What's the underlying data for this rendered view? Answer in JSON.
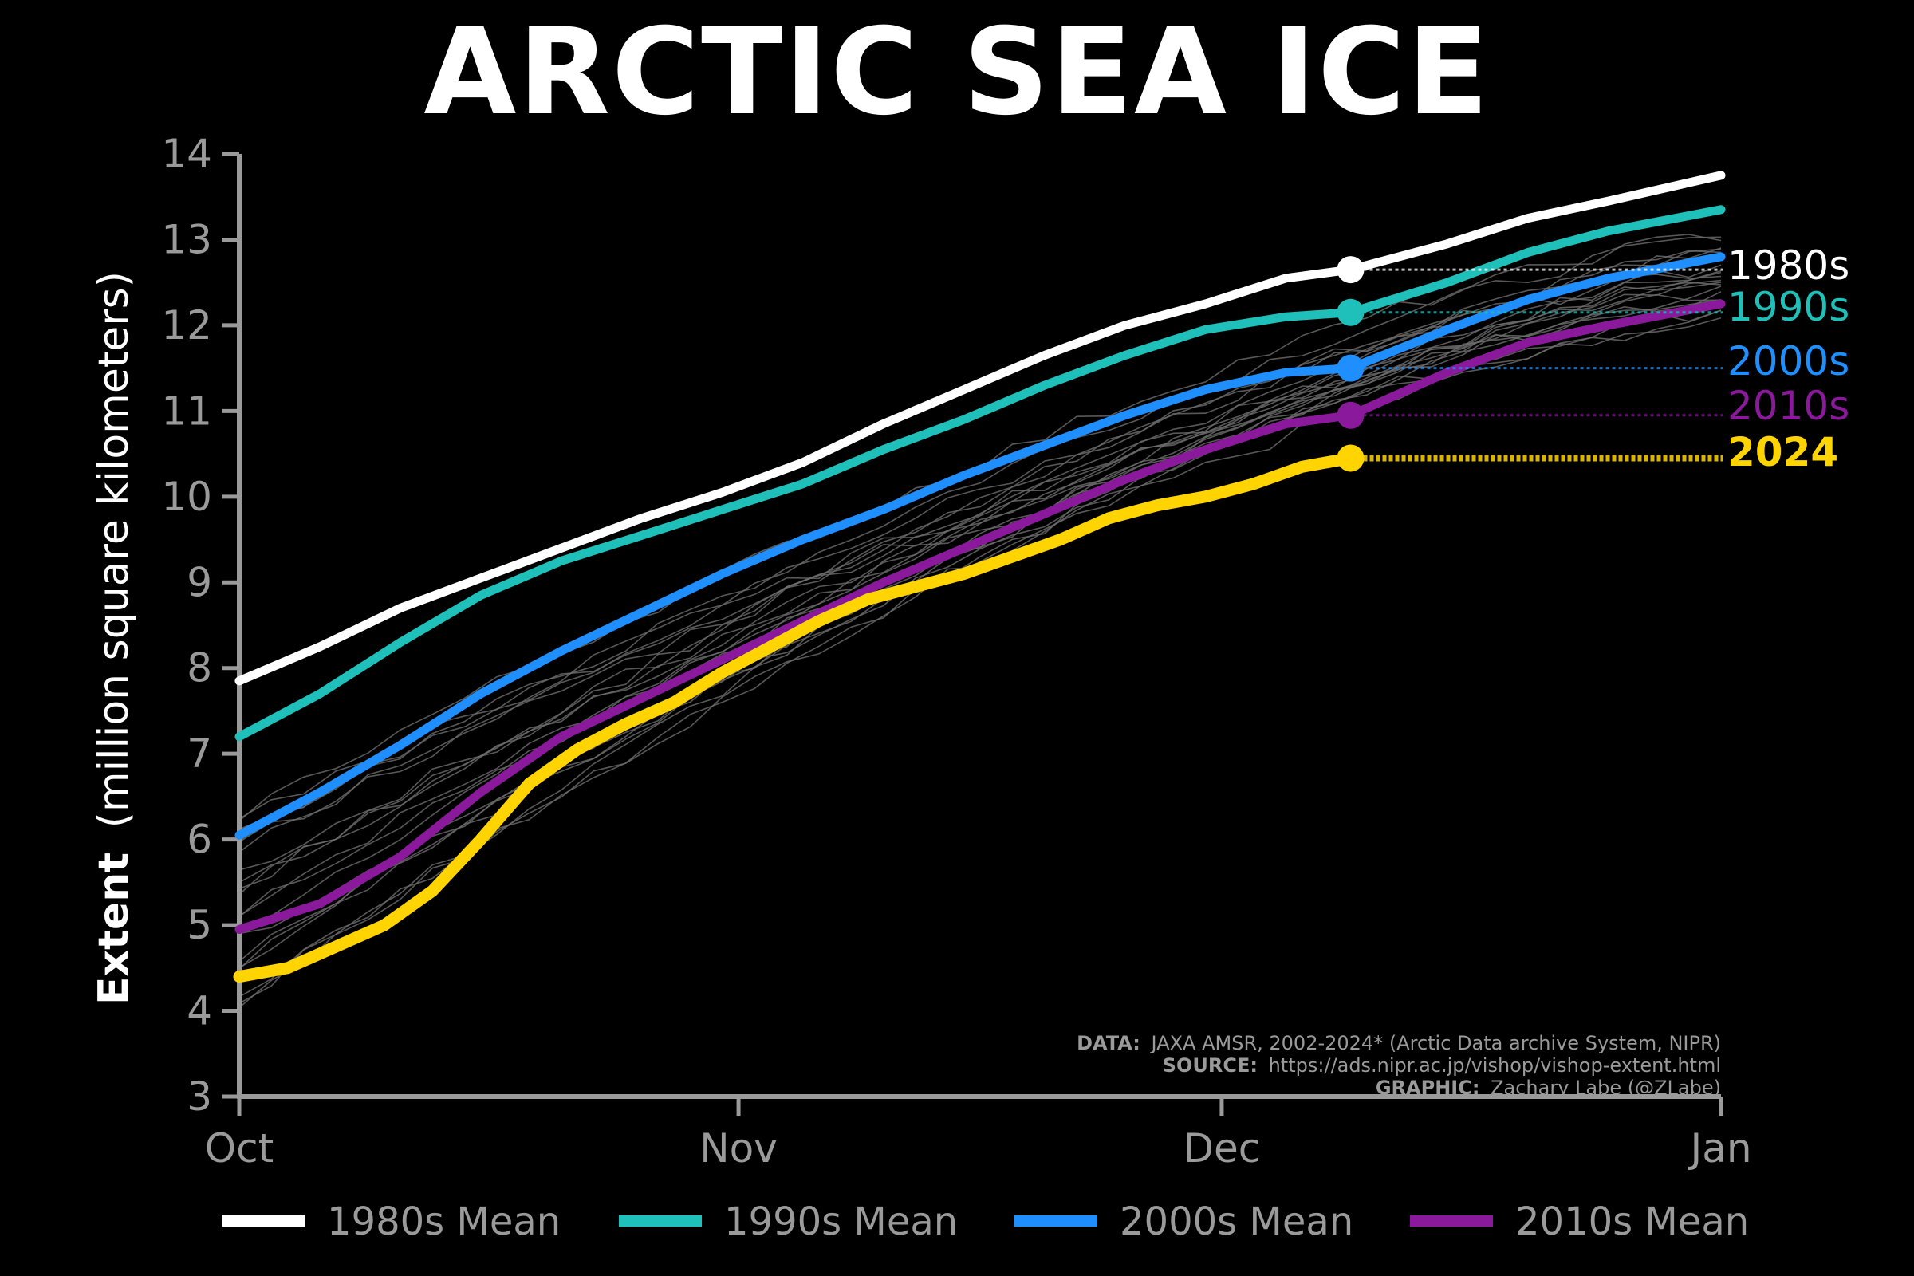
{
  "title": "ARCTIC SEA ICE",
  "credits": {
    "data_label": "DATA:",
    "data_text": "JAXA AMSR, 2002-2024* (Arctic Data archive System, NIPR)",
    "source_label": "SOURCE:",
    "source_text": "https://ads.nipr.ac.jp/vishop/vishop-extent.html",
    "graphic_label": "GRAPHIC:",
    "graphic_text": "Zachary Labe (@ZLabe)"
  },
  "chart_data": {
    "type": "line",
    "title": "ARCTIC SEA ICE",
    "ylabel_bold": "Extent",
    "ylabel_rest": "(million square kilometers)",
    "ylim": [
      3,
      14
    ],
    "yticks": [
      3,
      4,
      5,
      6,
      7,
      8,
      9,
      10,
      11,
      12,
      13,
      14
    ],
    "xlim": [
      0,
      92
    ],
    "xticks": [
      {
        "value": 0,
        "label": "Oct"
      },
      {
        "value": 31,
        "label": "Nov"
      },
      {
        "value": 61,
        "label": "Dec"
      },
      {
        "value": 92,
        "label": "Jan"
      }
    ],
    "grid": false,
    "legend_position": "bottom",
    "marker_day": 69,
    "series": [
      {
        "name": "1980s Mean",
        "end_label": "1980s",
        "color": "#ffffff",
        "marker_value": 12.65,
        "x": [
          0,
          5,
          10,
          15,
          20,
          25,
          30,
          35,
          40,
          45,
          50,
          55,
          60,
          65,
          69,
          75,
          80,
          85,
          92
        ],
        "y": [
          7.85,
          8.25,
          8.7,
          9.05,
          9.4,
          9.75,
          10.05,
          10.4,
          10.85,
          11.25,
          11.65,
          12.0,
          12.25,
          12.55,
          12.65,
          12.95,
          13.25,
          13.45,
          13.75
        ]
      },
      {
        "name": "1990s Mean",
        "end_label": "1990s",
        "color": "#1fc0b9",
        "marker_value": 12.15,
        "x": [
          0,
          5,
          10,
          15,
          20,
          25,
          30,
          35,
          40,
          45,
          50,
          55,
          60,
          65,
          69,
          75,
          80,
          85,
          92
        ],
        "y": [
          7.2,
          7.7,
          8.3,
          8.85,
          9.25,
          9.55,
          9.85,
          10.15,
          10.55,
          10.9,
          11.3,
          11.65,
          11.95,
          12.1,
          12.15,
          12.5,
          12.85,
          13.1,
          13.35
        ]
      },
      {
        "name": "2000s Mean",
        "end_label": "2000s",
        "color": "#1f8fff",
        "marker_value": 11.5,
        "x": [
          0,
          5,
          10,
          15,
          20,
          25,
          30,
          35,
          40,
          45,
          50,
          55,
          60,
          65,
          69,
          75,
          80,
          85,
          92
        ],
        "y": [
          6.05,
          6.55,
          7.1,
          7.7,
          8.2,
          8.65,
          9.1,
          9.5,
          9.85,
          10.25,
          10.6,
          10.95,
          11.25,
          11.45,
          11.5,
          11.95,
          12.3,
          12.55,
          12.8
        ]
      },
      {
        "name": "2010s Mean",
        "end_label": "2010s",
        "color": "#8a1a9b",
        "marker_value": 10.95,
        "x": [
          0,
          5,
          10,
          15,
          20,
          25,
          30,
          35,
          40,
          45,
          50,
          55,
          60,
          65,
          69,
          75,
          80,
          85,
          92
        ],
        "y": [
          4.95,
          5.25,
          5.8,
          6.55,
          7.2,
          7.65,
          8.1,
          8.55,
          9.0,
          9.4,
          9.8,
          10.2,
          10.55,
          10.85,
          10.95,
          11.45,
          11.8,
          12.0,
          12.25
        ]
      },
      {
        "name": "2024",
        "end_label": "2024",
        "color": "#ffd400",
        "marker_value": 10.45,
        "x": [
          0,
          3,
          6,
          9,
          12,
          15,
          18,
          21,
          24,
          27,
          30,
          33,
          36,
          39,
          42,
          45,
          48,
          51,
          54,
          57,
          60,
          63,
          66,
          69
        ],
        "y": [
          4.4,
          4.5,
          4.75,
          5.0,
          5.4,
          6.0,
          6.65,
          7.05,
          7.35,
          7.6,
          7.95,
          8.25,
          8.55,
          8.8,
          8.95,
          9.1,
          9.3,
          9.5,
          9.75,
          9.9,
          10.0,
          10.15,
          10.35,
          10.45
        ]
      }
    ]
  }
}
